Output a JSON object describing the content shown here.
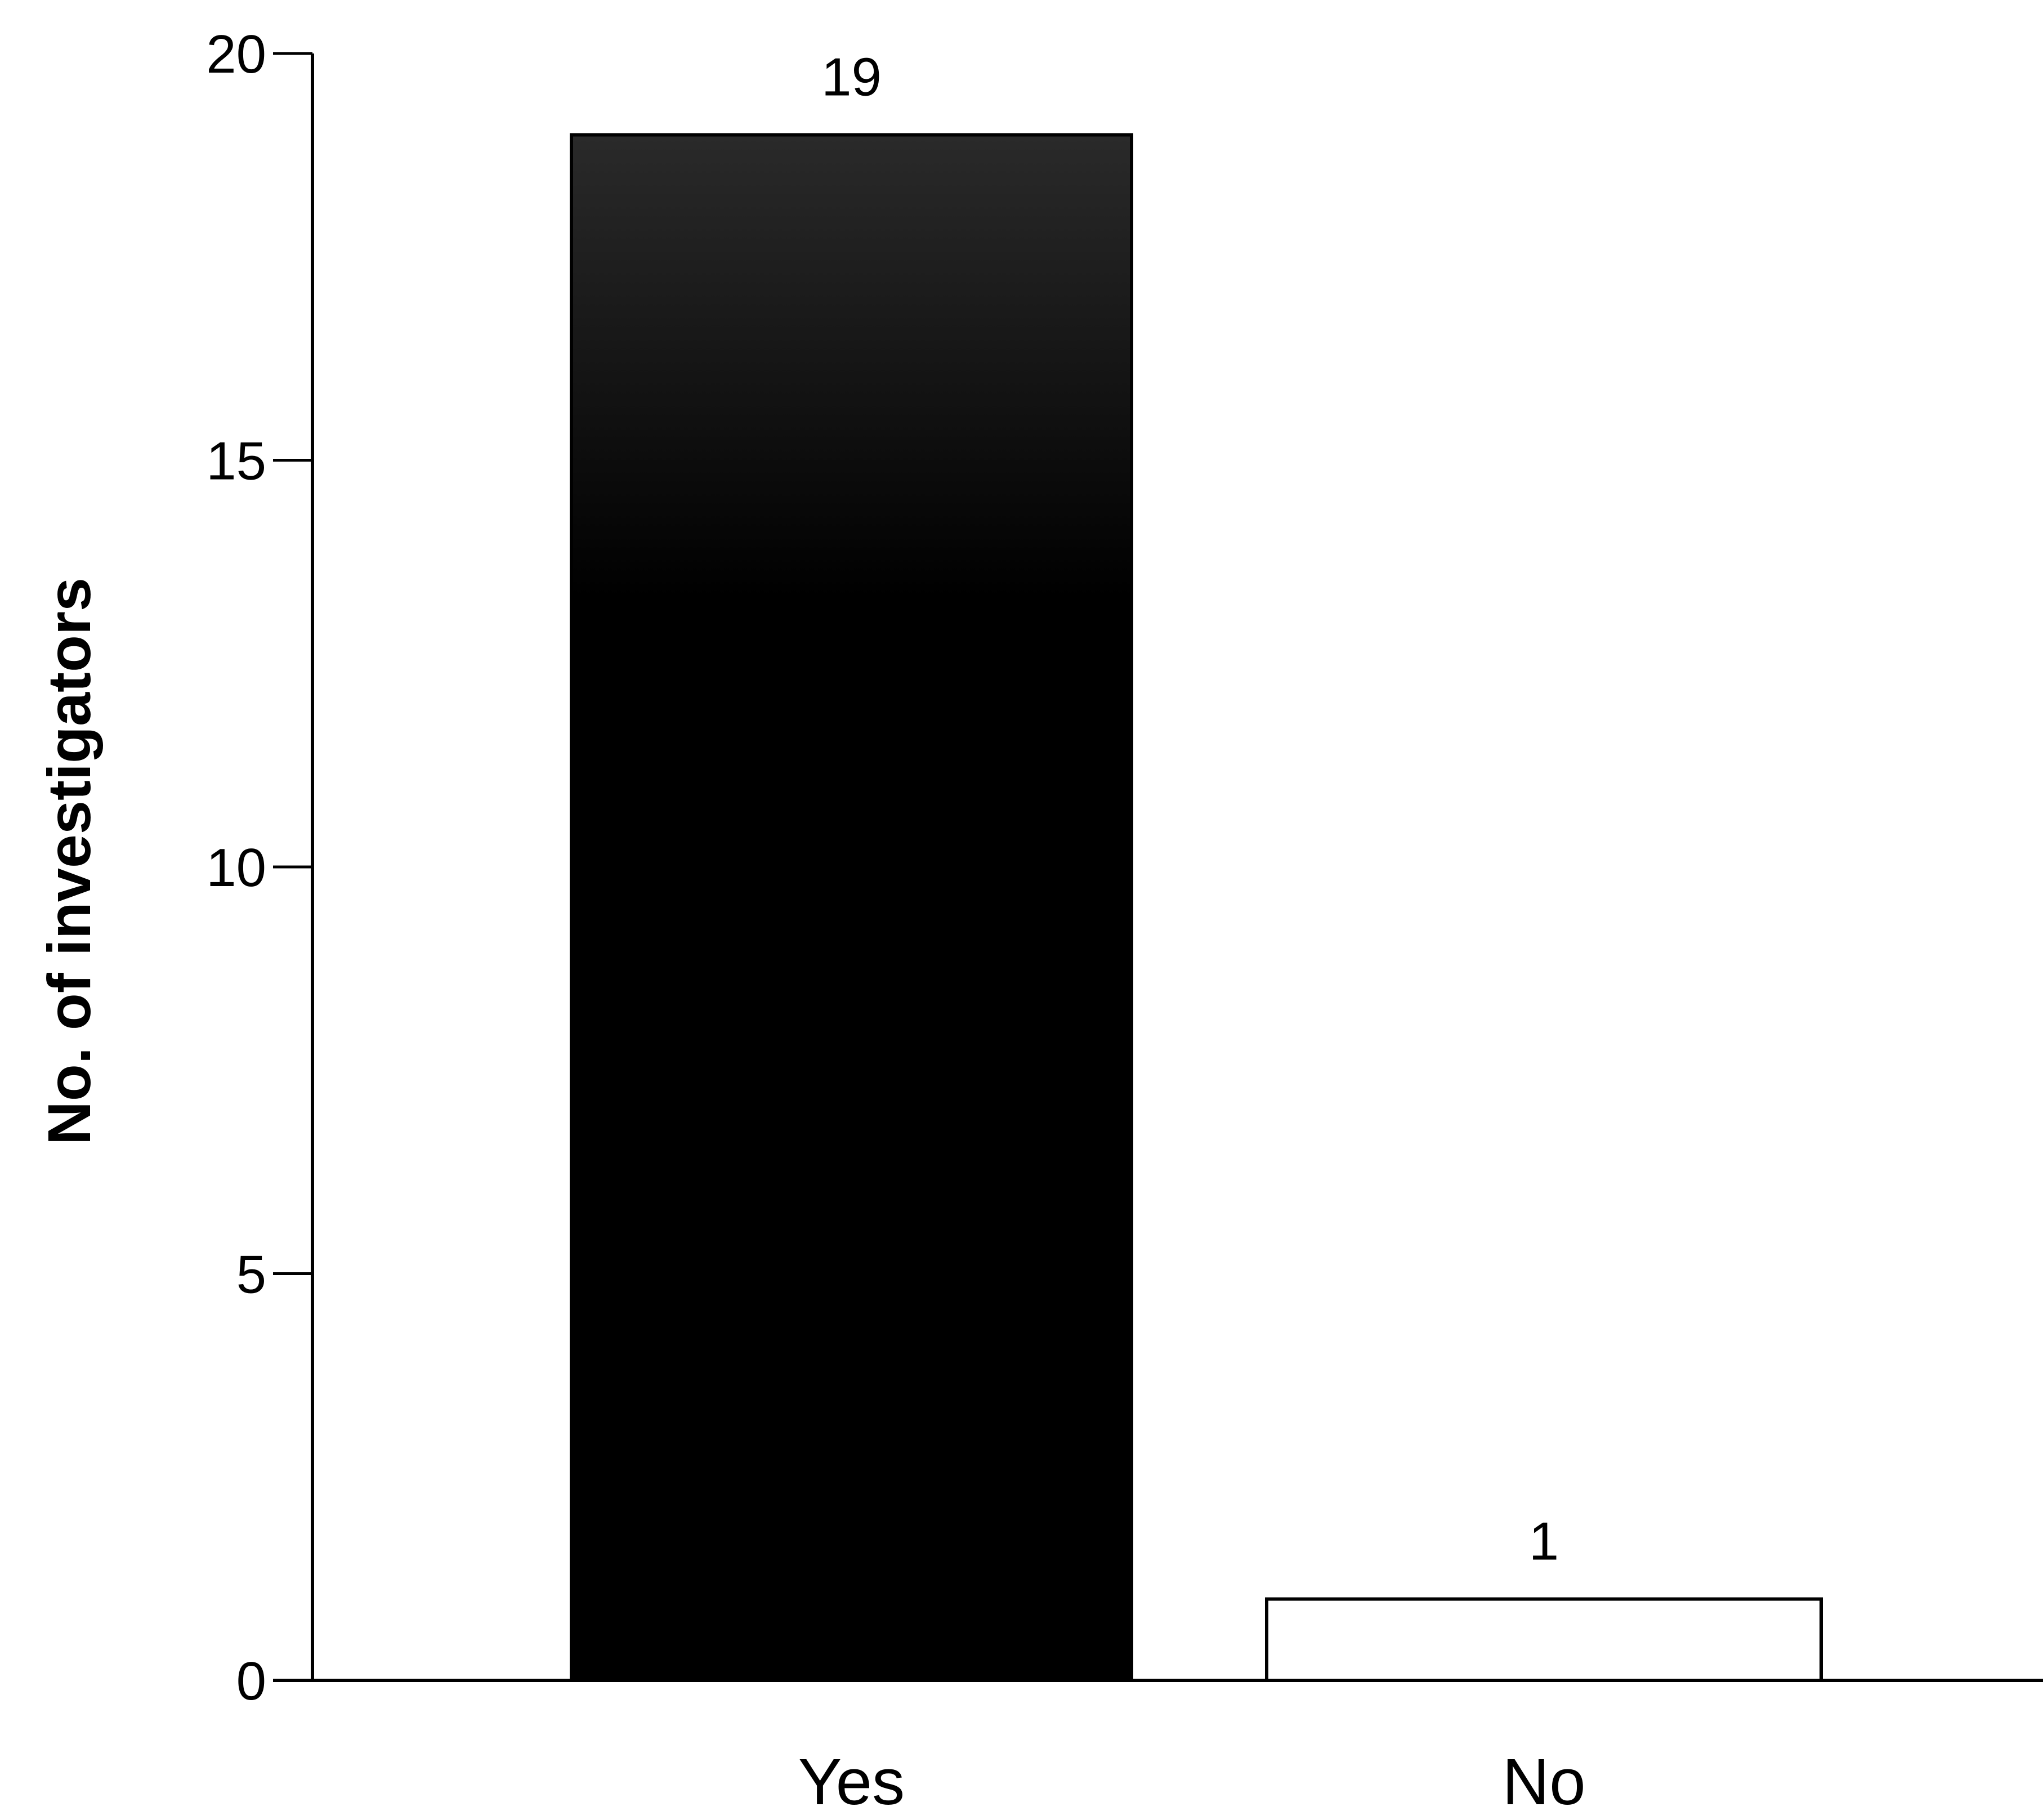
{
  "chart_data": {
    "type": "bar",
    "title": "",
    "xlabel": "",
    "ylabel": "No. of investigators",
    "categories": [
      "Yes",
      "No"
    ],
    "values": [
      19,
      1
    ],
    "data_labels": [
      "19",
      "1"
    ],
    "ylim": [
      0,
      20
    ],
    "yticks": [
      0,
      5,
      10,
      15,
      20
    ],
    "ytick_labels": [
      "0",
      "5",
      "10",
      "15",
      "20"
    ],
    "grid": false,
    "legend": "none",
    "colors": {
      "Yes": "#000000",
      "No": "#ffffff",
      "outline": "#000000"
    }
  }
}
